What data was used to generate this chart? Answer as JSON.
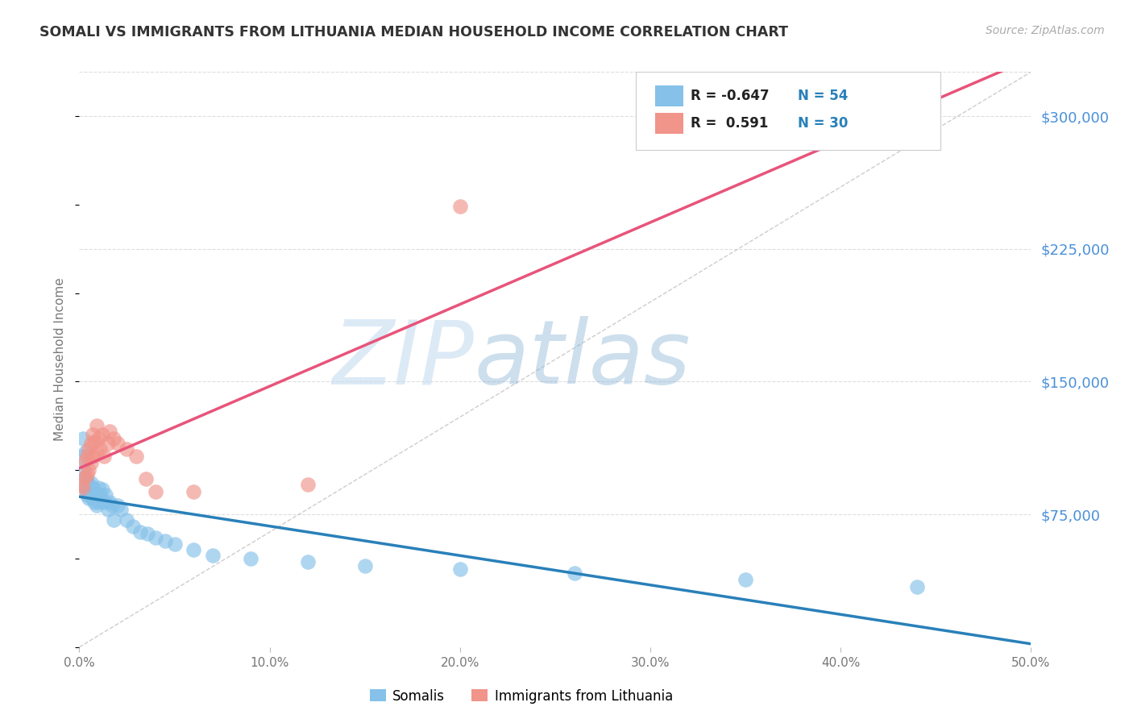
{
  "title": "SOMALI VS IMMIGRANTS FROM LITHUANIA MEDIAN HOUSEHOLD INCOME CORRELATION CHART",
  "source": "Source: ZipAtlas.com",
  "ylabel": "Median Household Income",
  "yticks": [
    0,
    75000,
    150000,
    225000,
    300000
  ],
  "ytick_labels": [
    "",
    "$75,000",
    "$150,000",
    "$225,000",
    "$300,000"
  ],
  "xmin": 0.0,
  "xmax": 0.5,
  "ymin": 0,
  "ymax": 325000,
  "somali_color": "#85C1E9",
  "lithuania_color": "#F1948A",
  "somali_trend_color": "#2980B9",
  "lithuania_trend_color": "#E8547A",
  "diagonal_color": "#C8C8C8",
  "background_color": "#FFFFFF",
  "legend_r_somali": "-0.647",
  "legend_n_somali": "54",
  "legend_r_lithuania": "0.591",
  "legend_n_lithuania": "30",
  "somali_x": [
    0.001,
    0.002,
    0.002,
    0.003,
    0.003,
    0.003,
    0.004,
    0.004,
    0.004,
    0.005,
    0.005,
    0.005,
    0.005,
    0.006,
    0.006,
    0.006,
    0.007,
    0.007,
    0.007,
    0.008,
    0.008,
    0.008,
    0.009,
    0.009,
    0.01,
    0.01,
    0.01,
    0.011,
    0.012,
    0.012,
    0.013,
    0.014,
    0.015,
    0.016,
    0.017,
    0.018,
    0.02,
    0.022,
    0.025,
    0.028,
    0.032,
    0.036,
    0.04,
    0.045,
    0.05,
    0.06,
    0.07,
    0.09,
    0.12,
    0.15,
    0.2,
    0.26,
    0.35,
    0.44
  ],
  "somali_y": [
    108000,
    118000,
    100000,
    110000,
    96000,
    90000,
    88000,
    94000,
    86000,
    92000,
    88000,
    84000,
    91000,
    87000,
    93000,
    85000,
    90000,
    84000,
    88000,
    86000,
    82000,
    88000,
    84000,
    80000,
    85000,
    90000,
    82000,
    86000,
    83000,
    89000,
    82000,
    86000,
    78000,
    82000,
    80000,
    72000,
    80000,
    78000,
    72000,
    68000,
    65000,
    64000,
    62000,
    60000,
    58000,
    55000,
    52000,
    50000,
    48000,
    46000,
    44000,
    42000,
    38000,
    34000
  ],
  "lithuania_x": [
    0.001,
    0.002,
    0.003,
    0.003,
    0.004,
    0.004,
    0.005,
    0.005,
    0.006,
    0.006,
    0.007,
    0.007,
    0.008,
    0.009,
    0.009,
    0.01,
    0.011,
    0.012,
    0.013,
    0.015,
    0.016,
    0.018,
    0.02,
    0.025,
    0.03,
    0.035,
    0.04,
    0.2,
    0.12,
    0.06
  ],
  "lithuania_y": [
    92000,
    90000,
    105000,
    96000,
    98000,
    108000,
    112000,
    100000,
    115000,
    104000,
    108000,
    120000,
    116000,
    110000,
    125000,
    118000,
    112000,
    120000,
    108000,
    115000,
    122000,
    118000,
    115000,
    112000,
    108000,
    95000,
    88000,
    249000,
    92000,
    88000
  ]
}
